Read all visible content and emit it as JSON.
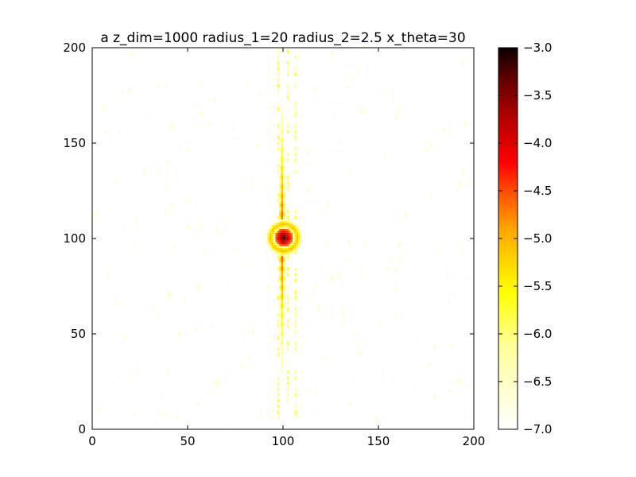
{
  "chart_data": {
    "type": "heatmap",
    "title": "a z_dim=1000 radius_1=20 radius_2=2.5 x_theta=30",
    "xlabel": "",
    "ylabel": "",
    "xlim": [
      0,
      200
    ],
    "ylim": [
      0,
      200
    ],
    "x_ticks": [
      0,
      50,
      100,
      150,
      200
    ],
    "y_ticks": [
      0,
      50,
      100,
      150,
      200
    ],
    "grid": false,
    "colormap": "hot_r",
    "colorbar": {
      "range": [
        -7.0,
        -3.0
      ],
      "ticks": [
        -3.0,
        -3.5,
        -4.0,
        -4.5,
        -5.0,
        -5.5,
        -6.0,
        -6.5,
        -7.0
      ],
      "tick_labels": [
        "−3.0",
        "−3.5",
        "−4.0",
        "−4.5",
        "−5.0",
        "−5.5",
        "−6.0",
        "−6.5",
        "−7.0"
      ]
    },
    "features": [
      {
        "shape": "central_disk",
        "center": [
          100,
          100
        ],
        "radius": 4,
        "value": -3.1
      },
      {
        "shape": "ring",
        "center": [
          100,
          100
        ],
        "radius": 7,
        "width": 2.5,
        "value": -6.0
      },
      {
        "shape": "vertical_streak",
        "center_x": 99.5,
        "y_range": [
          30,
          170
        ],
        "half_width": 1.5,
        "peak_value": -4.3
      },
      {
        "shape": "outer_fringes",
        "x": [
          97,
          102,
          106
        ],
        "y_range": [
          5,
          200
        ],
        "value": -6.3
      },
      {
        "shape": "background_speckle",
        "x_range": [
          0,
          200
        ],
        "y_range": [
          0,
          200
        ],
        "value": -6.7,
        "density": "sparse"
      }
    ]
  }
}
